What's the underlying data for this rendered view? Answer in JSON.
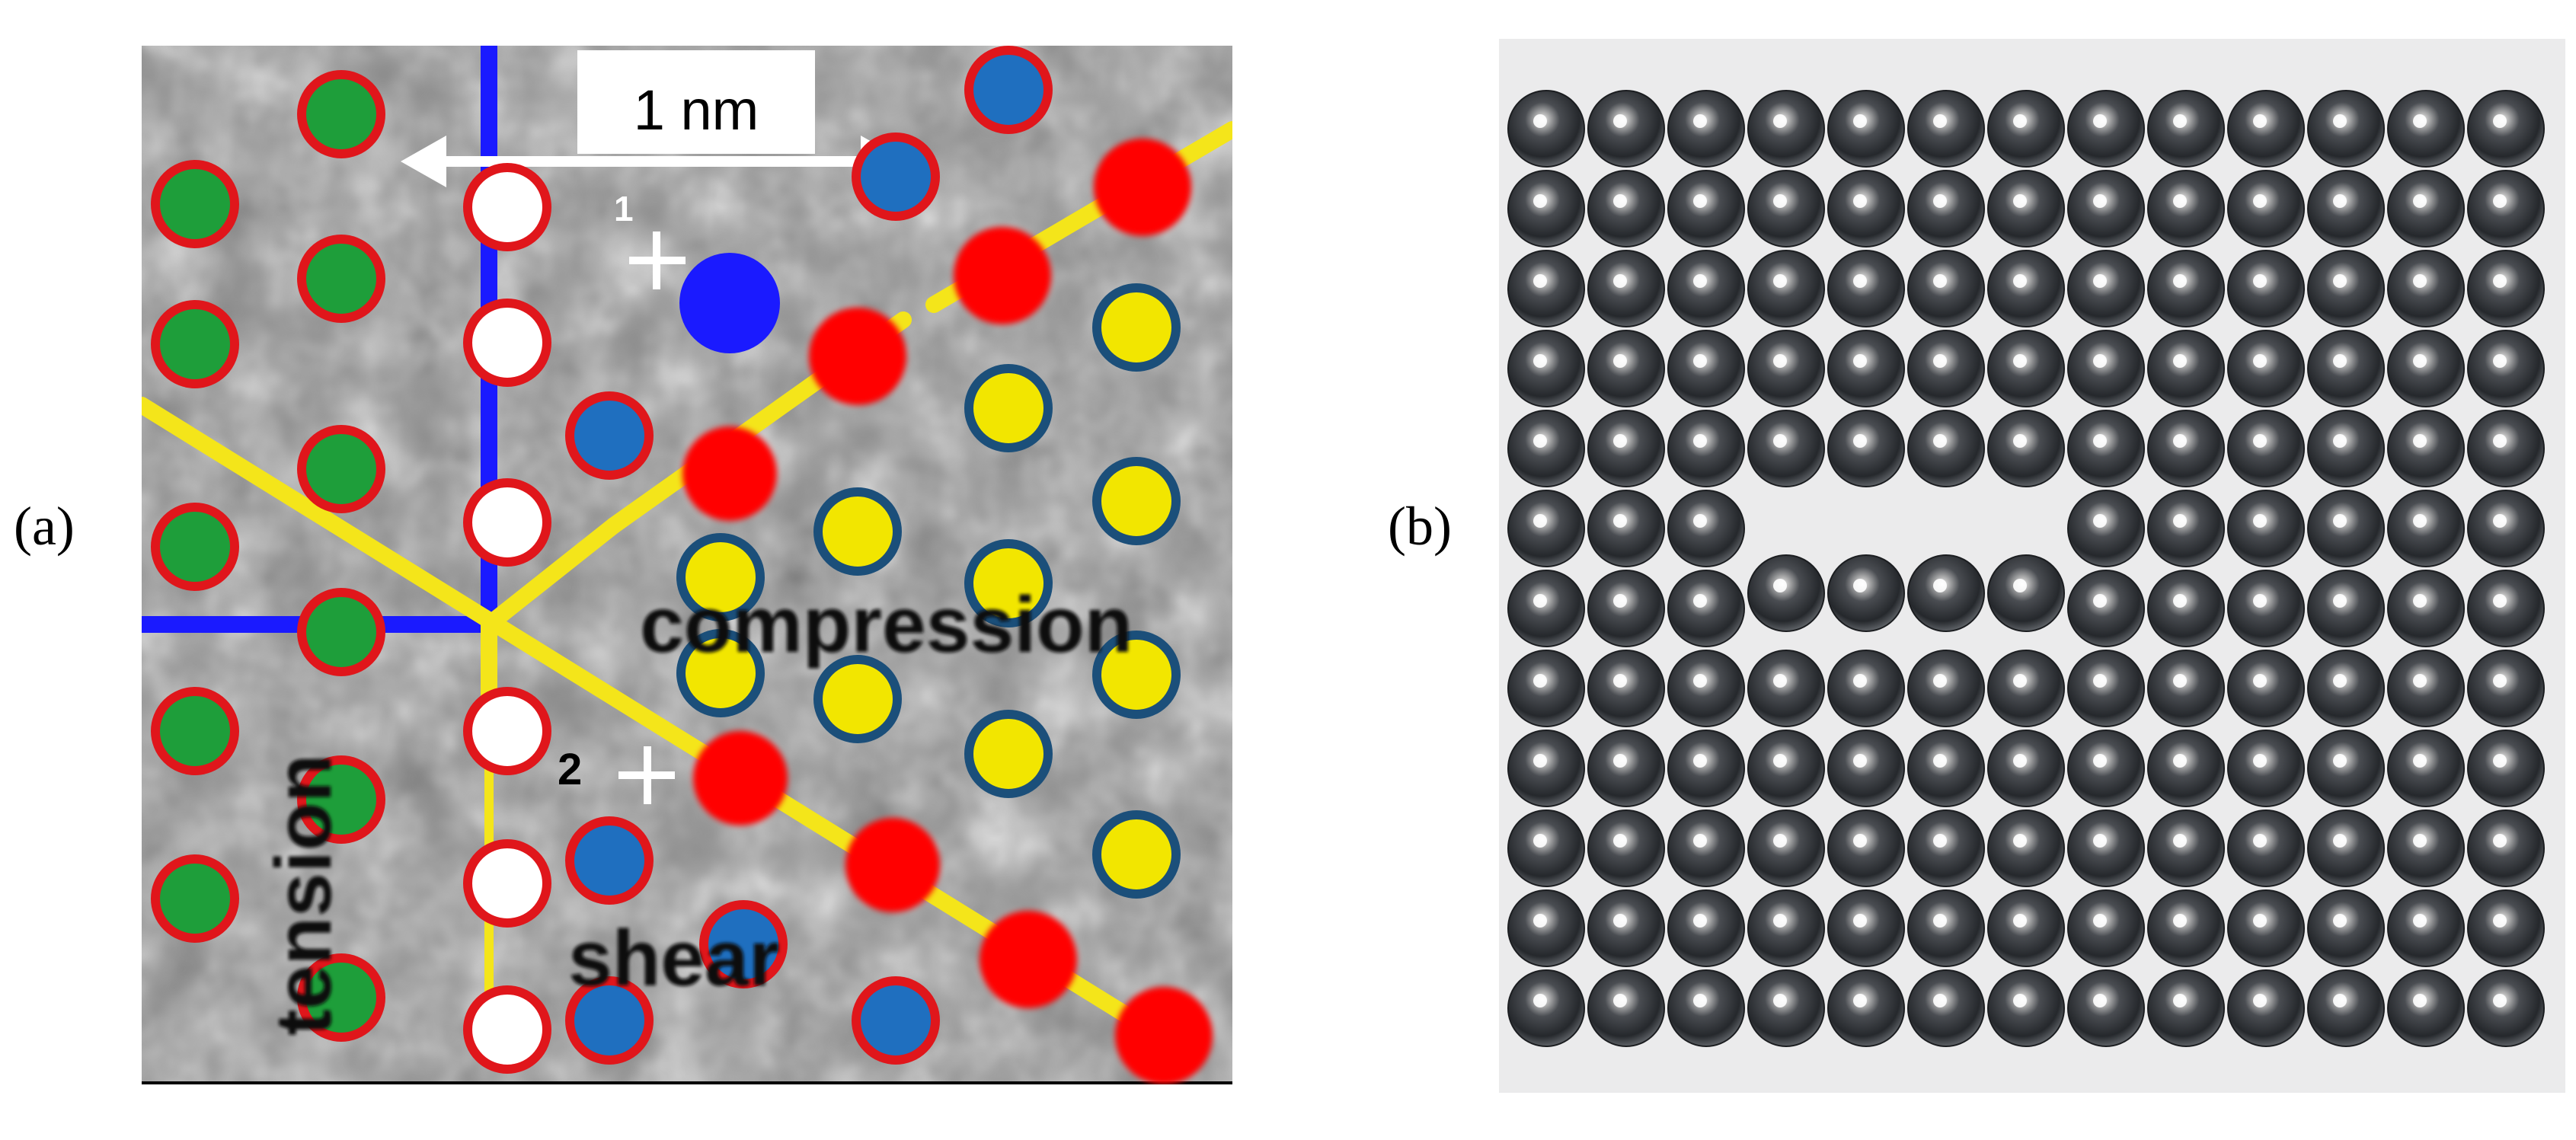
{
  "figure": {
    "panel_a_label": "(a)",
    "panel_b_label": "(b)"
  },
  "panel_a": {
    "scale_label": "1 nm",
    "annotations": {
      "compression": "compression",
      "tension": "tension",
      "shear": "shear",
      "marker1": "1",
      "marker2": "2"
    },
    "colors": {
      "atom_green": "#1e9e3a",
      "atom_blue": "#1f6fbf",
      "atom_yellow": "#f2e600",
      "atom_red": "#ff0000",
      "atom_white": "#ffffff",
      "outline_red": "#e0161b",
      "outline_blue": "#1b4f7a",
      "line_blue": "#1a1aff",
      "line_yellow": "#f4e51a"
    }
  },
  "panel_b": {
    "grid_rows": 12,
    "grid_cols": 13,
    "description_icon": "steel-ball-raft"
  }
}
